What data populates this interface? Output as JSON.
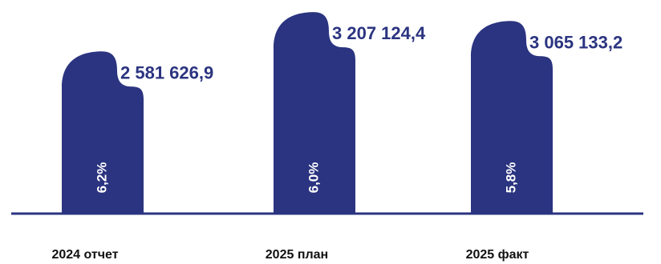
{
  "chart_data": {
    "type": "bar",
    "categories": [
      "2024 отчет",
      "2025 план",
      "2025 факт"
    ],
    "values": [
      2581626.9,
      3207124.4,
      3065133.2
    ],
    "value_labels": [
      "2 581 626,9",
      "3 207 124,4",
      "3 065 133,2"
    ],
    "percent_labels": [
      "6,2%",
      "6,0%",
      "5,8%"
    ],
    "title": "",
    "xlabel": "",
    "ylabel": "",
    "ylim": [
      0,
      3400000
    ],
    "grid": false,
    "legend": "none"
  },
  "colors": {
    "bar": "#2b3480",
    "baseline": "#2b3480",
    "value_text": "#2b3480",
    "percent_text": "#ffffff",
    "category_text": "#111111"
  }
}
